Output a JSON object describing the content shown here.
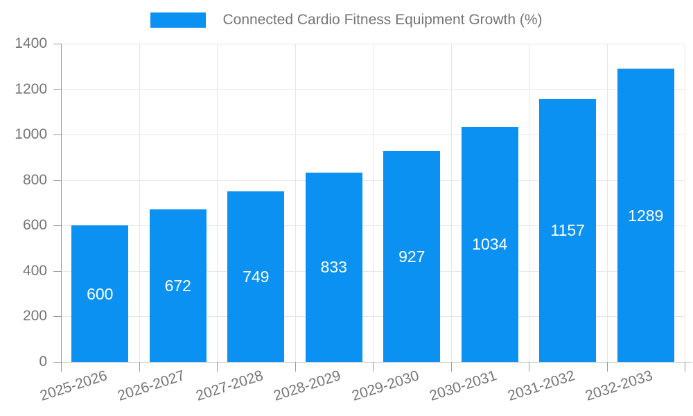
{
  "legend": {
    "label": "Connected Cardio Fitness Equipment Growth (%)"
  },
  "colors": {
    "bar": "#0a91f2",
    "grid_line": "#e6e6e6",
    "axis_line": "#999999",
    "x_axis_line": "#c9c9c9",
    "tick": "#999999",
    "label_text": "#757575",
    "value_text": "#ffffff",
    "background": "#ffffff"
  },
  "chart_data": {
    "type": "bar",
    "title": "Connected Cardio Fitness Equipment Growth (%)",
    "series_name": "Connected Cardio Fitness Equipment Growth (%)",
    "categories": [
      "2025-2026",
      "2026-2027",
      "2027-2028",
      "2028-2029",
      "2029-2030",
      "2030-2031",
      "2031-2032",
      "2032-2033"
    ],
    "values": [
      600,
      672,
      749,
      833,
      927,
      1034,
      1157,
      1289
    ],
    "xlabel": "",
    "ylabel": "",
    "ylim": [
      0,
      1400
    ],
    "ytick_step": 200,
    "yticks": [
      0,
      200,
      400,
      600,
      800,
      1000,
      1200,
      1400
    ],
    "grid": true,
    "legend_position": "top-center",
    "value_label_position": "inside-center",
    "x_label_rotation_deg": -18
  }
}
